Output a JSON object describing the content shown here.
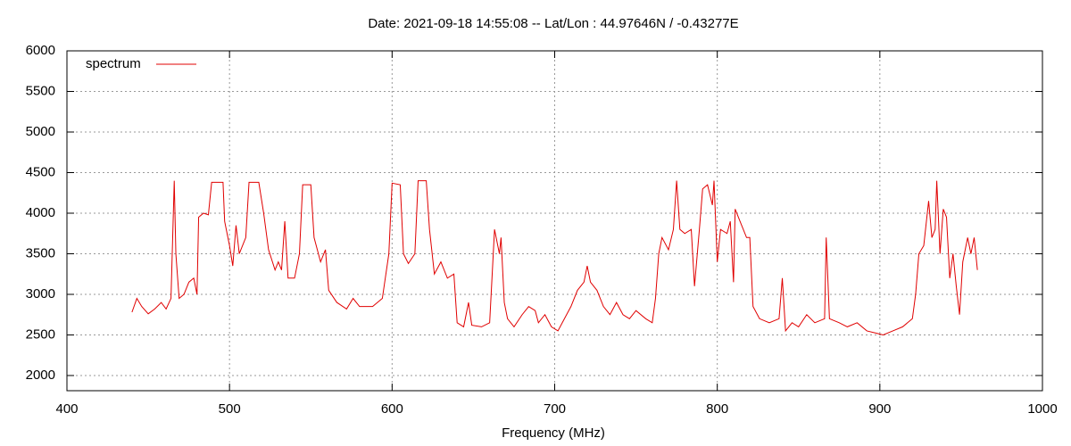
{
  "chart_data": {
    "type": "line",
    "title": "Date: 2021-09-18 14:55:08  --  Lat/Lon : 44.97646N / -0.43277E",
    "x_label": "Frequency (MHz)",
    "legend_position": "top-left",
    "grid": true,
    "xlim": [
      400,
      1000
    ],
    "xticks": [
      400,
      500,
      600,
      700,
      800,
      900,
      1000
    ],
    "ylim": [
      1813,
      6000
    ],
    "yticks": [
      2000,
      2500,
      3000,
      3500,
      4000,
      4500,
      5000,
      5500,
      6000
    ],
    "series": [
      {
        "name": "spectrum",
        "color": "#e00000",
        "x": [
          440,
          443,
          446,
          450,
          454,
          458,
          461,
          464,
          466,
          467,
          469,
          472,
          475,
          478,
          480,
          481,
          484,
          487,
          489,
          493,
          496,
          497,
          500,
          502,
          504,
          506,
          510,
          512,
          518,
          521,
          524,
          528,
          530,
          532,
          534,
          536,
          540,
          543,
          545,
          550,
          552,
          556,
          559,
          561,
          566,
          572,
          576,
          580,
          588,
          594,
          598,
          600,
          605,
          607,
          610,
          614,
          616,
          621,
          623,
          626,
          630,
          634,
          638,
          640,
          644,
          647,
          649,
          655,
          660,
          663,
          666,
          667,
          669,
          671,
          675,
          680,
          684,
          688,
          690,
          694,
          698,
          702,
          706,
          710,
          714,
          718,
          720,
          722,
          726,
          730,
          734,
          738,
          742,
          746,
          750,
          756,
          760,
          762,
          764,
          766,
          770,
          773,
          775,
          777,
          780,
          784,
          786,
          789,
          791,
          794,
          797,
          798,
          800,
          802,
          806,
          808,
          810,
          811,
          815,
          818,
          820,
          822,
          826,
          832,
          838,
          840,
          842,
          846,
          850,
          855,
          860,
          866,
          867,
          869,
          875,
          880,
          886,
          892,
          898,
          902,
          908,
          914,
          920,
          922,
          924,
          927,
          930,
          932,
          934,
          935,
          937,
          939,
          941,
          943,
          945,
          947,
          949,
          951,
          954,
          956,
          958,
          960
        ],
        "values": [
          2780,
          2950,
          2850,
          2760,
          2820,
          2900,
          2820,
          2950,
          4400,
          3500,
          2950,
          3000,
          3150,
          3200,
          3000,
          3950,
          4000,
          3980,
          4380,
          4380,
          4380,
          3900,
          3600,
          3350,
          3850,
          3500,
          3700,
          4380,
          4380,
          4000,
          3550,
          3300,
          3400,
          3300,
          3900,
          3200,
          3200,
          3500,
          4350,
          4350,
          3700,
          3400,
          3550,
          3050,
          2900,
          2820,
          2950,
          2850,
          2850,
          2950,
          3500,
          4370,
          4350,
          3500,
          3380,
          3500,
          4400,
          4400,
          3800,
          3250,
          3400,
          3200,
          3250,
          2650,
          2600,
          2900,
          2620,
          2600,
          2650,
          3800,
          3500,
          3700,
          2900,
          2700,
          2600,
          2750,
          2850,
          2800,
          2650,
          2750,
          2600,
          2550,
          2700,
          2850,
          3050,
          3150,
          3350,
          3150,
          3050,
          2850,
          2750,
          2900,
          2750,
          2700,
          2800,
          2700,
          2650,
          2950,
          3500,
          3700,
          3550,
          3800,
          4400,
          3800,
          3750,
          3800,
          3100,
          3800,
          4300,
          4350,
          4100,
          4400,
          3400,
          3800,
          3750,
          3900,
          3150,
          4050,
          3850,
          3700,
          3700,
          2850,
          2700,
          2650,
          2700,
          3200,
          2550,
          2650,
          2600,
          2750,
          2650,
          2700,
          3700,
          2700,
          2650,
          2600,
          2650,
          2550,
          2520,
          2500,
          2550,
          2600,
          2700,
          3000,
          3500,
          3600,
          4150,
          3700,
          3800,
          4400,
          3500,
          4050,
          3950,
          3200,
          3500,
          3100,
          2750,
          3400,
          3700,
          3500,
          3700,
          3300
        ]
      }
    ]
  }
}
